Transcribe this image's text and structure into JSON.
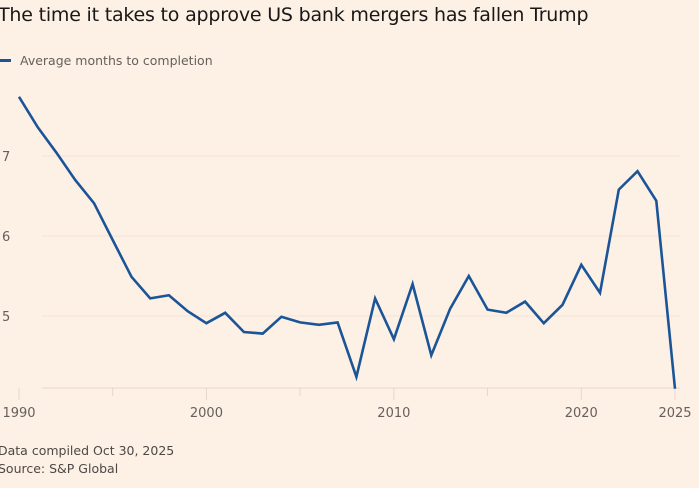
{
  "title": "The time it takes to approve US bank mergers has fallen Trump",
  "legend": [
    {
      "label": "Average months to completion",
      "color": "#1b5597"
    }
  ],
  "footer": {
    "note": "Data compiled Oct 30, 2025",
    "source": "Source: S&P Global"
  },
  "colors": {
    "background": "#fdf1e6",
    "line": "#1b5597",
    "grid": "#f3e3d6",
    "axis": "#e7d6ca",
    "text": "#66605c"
  },
  "chart_data": {
    "type": "line",
    "title": "The time it takes to approve US bank mergers has fallen Trump",
    "xlabel": "",
    "ylabel": "",
    "xlim": [
      1990,
      2025
    ],
    "ylim": [
      4.1,
      7.75
    ],
    "grid": true,
    "legend_position": "top-left",
    "x_ticks": [
      1990,
      2000,
      2010,
      2020,
      2025
    ],
    "x_minor_ticks": [
      1995,
      2005,
      2015
    ],
    "y_ticks": [
      5,
      6,
      7
    ],
    "series": [
      {
        "name": "Average months to completion",
        "x": [
          1990,
          1991,
          1992,
          1993,
          1994,
          1995,
          1996,
          1997,
          1998,
          1999,
          2000,
          2001,
          2002,
          2003,
          2004,
          2005,
          2006,
          2007,
          2008,
          2009,
          2010,
          2011,
          2012,
          2013,
          2014,
          2015,
          2016,
          2017,
          2018,
          2019,
          2020,
          2021,
          2022,
          2023,
          2024,
          2025
        ],
        "values": [
          7.74,
          7.36,
          7.04,
          6.7,
          6.41,
          5.95,
          5.49,
          5.22,
          5.26,
          5.06,
          4.91,
          5.04,
          4.8,
          4.78,
          4.99,
          4.92,
          4.89,
          4.92,
          4.24,
          5.22,
          4.71,
          5.4,
          4.51,
          5.09,
          5.5,
          5.08,
          5.04,
          5.18,
          4.91,
          5.14,
          5.64,
          5.29,
          6.58,
          6.81,
          6.44,
          4.09
        ]
      }
    ],
    "footer": [
      "Data compiled Oct 30, 2025",
      "Source: S&P Global"
    ]
  }
}
